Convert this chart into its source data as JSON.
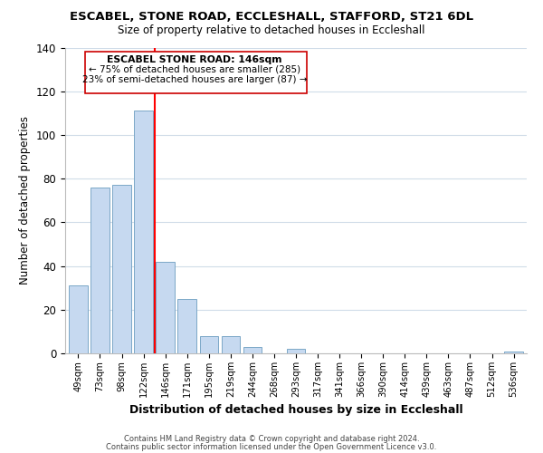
{
  "title1": "ESCABEL, STONE ROAD, ECCLESHALL, STAFFORD, ST21 6DL",
  "title2": "Size of property relative to detached houses in Eccleshall",
  "xlabel": "Distribution of detached houses by size in Eccleshall",
  "ylabel": "Number of detached properties",
  "bar_labels": [
    "49sqm",
    "73sqm",
    "98sqm",
    "122sqm",
    "146sqm",
    "171sqm",
    "195sqm",
    "219sqm",
    "244sqm",
    "268sqm",
    "293sqm",
    "317sqm",
    "341sqm",
    "366sqm",
    "390sqm",
    "414sqm",
    "439sqm",
    "463sqm",
    "487sqm",
    "512sqm",
    "536sqm"
  ],
  "bar_heights": [
    31,
    76,
    77,
    111,
    42,
    25,
    8,
    8,
    3,
    0,
    2,
    0,
    0,
    0,
    0,
    0,
    0,
    0,
    0,
    0,
    1
  ],
  "bar_color": "#c6d9f0",
  "bar_edge_color": "#7BA7C7",
  "vline_x": 4.5,
  "vline_color": "red",
  "ylim": [
    0,
    140
  ],
  "yticks": [
    0,
    20,
    40,
    60,
    80,
    100,
    120,
    140
  ],
  "annotation_title": "ESCABEL STONE ROAD: 146sqm",
  "annotation_line1": "← 75% of detached houses are smaller (285)",
  "annotation_line2": "23% of semi-detached houses are larger (87) →",
  "footer1": "Contains HM Land Registry data © Crown copyright and database right 2024.",
  "footer2": "Contains public sector information licensed under the Open Government Licence v3.0.",
  "background_color": "#ffffff",
  "grid_color": "#d0dce8"
}
